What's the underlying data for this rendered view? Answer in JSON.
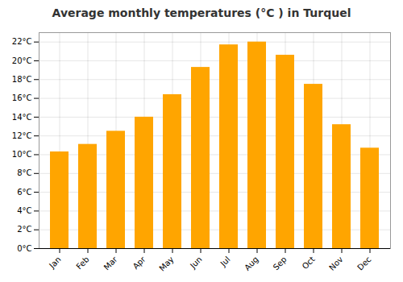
{
  "chart_data": {
    "type": "bar",
    "title": "Average monthly temperatures (°C ) in Turquel",
    "categories": [
      "Jan",
      "Feb",
      "Mar",
      "Apr",
      "May",
      "Jun",
      "Jul",
      "Aug",
      "Sep",
      "Oct",
      "Nov",
      "Dec"
    ],
    "values": [
      10.3,
      11.1,
      12.5,
      14.0,
      16.4,
      19.3,
      21.7,
      22.0,
      20.6,
      17.5,
      13.2,
      10.7
    ],
    "color": "#FFA500",
    "ylim": [
      0,
      23
    ],
    "yticks": [
      {
        "value": 0,
        "label": "0°C"
      },
      {
        "value": 2,
        "label": "2°C"
      },
      {
        "value": 4,
        "label": "4°C"
      },
      {
        "value": 6,
        "label": "6°C"
      },
      {
        "value": 8,
        "label": "8°C"
      },
      {
        "value": 10,
        "label": "10°C"
      },
      {
        "value": 12,
        "label": "12°C"
      },
      {
        "value": 14,
        "label": "14°C"
      },
      {
        "value": 16,
        "label": "16°C"
      },
      {
        "value": 18,
        "label": "18°C"
      },
      {
        "value": 20,
        "label": "20°C"
      },
      {
        "value": 22,
        "label": "22°C"
      }
    ],
    "grid": true
  }
}
